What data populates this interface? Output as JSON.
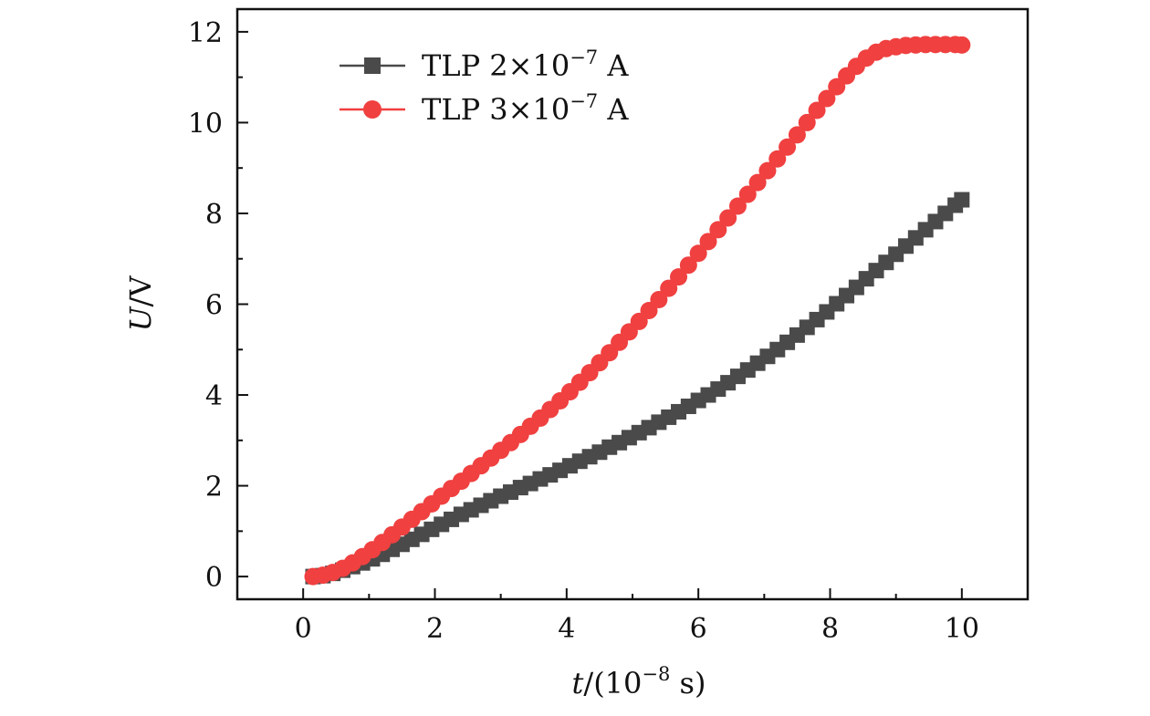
{
  "chart_data": {
    "type": "line",
    "title": "",
    "xlabel": "t/(10⁻⁸ s)",
    "xlabel_var": "t",
    "xlabel_rest": "/(10",
    "xlabel_exp": "−8",
    "xlabel_unit": " s)",
    "ylabel": "U/V",
    "ylabel_var": "U",
    "ylabel_rest": "/V",
    "xlim": [
      -1,
      11
    ],
    "ylim": [
      -0.5,
      12.5
    ],
    "xticks": [
      0,
      2,
      4,
      6,
      8,
      10
    ],
    "yticks": [
      0,
      2,
      4,
      6,
      8,
      10,
      12
    ],
    "xtick_labels": [
      "0",
      "2",
      "4",
      "6",
      "8",
      "10"
    ],
    "ytick_labels": [
      "0",
      "2",
      "4",
      "6",
      "8",
      "10",
      "12"
    ],
    "grid": false,
    "legend_position": "top-left",
    "series": [
      {
        "name": "TLP 2×10⁻⁷ A",
        "legend_main": "TLP 2×10",
        "legend_exp": "−7",
        "legend_unit": " A",
        "marker": "square",
        "color": "#4a4a4a",
        "x": [
          0.15,
          0.3,
          0.45,
          0.6,
          0.75,
          0.9,
          1.05,
          1.2,
          1.35,
          1.5,
          1.65,
          1.8,
          1.95,
          2.1,
          2.25,
          2.4,
          2.55,
          2.7,
          2.85,
          3.0,
          3.15,
          3.3,
          3.45,
          3.6,
          3.75,
          3.9,
          4.05,
          4.2,
          4.35,
          4.5,
          4.65,
          4.8,
          4.95,
          5.1,
          5.25,
          5.4,
          5.55,
          5.7,
          5.85,
          6.0,
          6.15,
          6.3,
          6.45,
          6.6,
          6.75,
          6.9,
          7.05,
          7.2,
          7.35,
          7.5,
          7.65,
          7.8,
          7.95,
          8.1,
          8.25,
          8.4,
          8.55,
          8.7,
          8.85,
          9.0,
          9.15,
          9.3,
          9.45,
          9.6,
          9.75,
          9.9,
          10.0
        ],
        "y": [
          0.0,
          0.02,
          0.07,
          0.14,
          0.22,
          0.3,
          0.39,
          0.49,
          0.6,
          0.71,
          0.82,
          0.93,
          1.04,
          1.15,
          1.26,
          1.37,
          1.47,
          1.57,
          1.67,
          1.77,
          1.86,
          1.96,
          2.05,
          2.15,
          2.24,
          2.34,
          2.44,
          2.54,
          2.64,
          2.74,
          2.85,
          2.95,
          3.06,
          3.17,
          3.28,
          3.4,
          3.51,
          3.63,
          3.75,
          3.88,
          4.0,
          4.13,
          4.27,
          4.41,
          4.55,
          4.7,
          4.85,
          5.0,
          5.16,
          5.32,
          5.49,
          5.66,
          5.83,
          6.01,
          6.19,
          6.37,
          6.56,
          6.74,
          6.92,
          7.1,
          7.28,
          7.46,
          7.64,
          7.82,
          8.0,
          8.18,
          8.3
        ]
      },
      {
        "name": "TLP 3×10⁻⁷ A",
        "legend_main": "TLP 3×10",
        "legend_exp": "−7",
        "legend_unit": " A",
        "marker": "circle",
        "color": "#f04040",
        "x": [
          0.15,
          0.3,
          0.45,
          0.6,
          0.75,
          0.9,
          1.05,
          1.2,
          1.35,
          1.5,
          1.65,
          1.8,
          1.95,
          2.1,
          2.25,
          2.4,
          2.55,
          2.7,
          2.85,
          3.0,
          3.15,
          3.3,
          3.45,
          3.6,
          3.75,
          3.9,
          4.05,
          4.2,
          4.35,
          4.5,
          4.65,
          4.8,
          4.95,
          5.1,
          5.25,
          5.4,
          5.55,
          5.7,
          5.85,
          6.0,
          6.15,
          6.3,
          6.45,
          6.6,
          6.75,
          6.9,
          7.05,
          7.2,
          7.35,
          7.5,
          7.65,
          7.8,
          7.95,
          8.1,
          8.25,
          8.4,
          8.55,
          8.7,
          8.85,
          9.0,
          9.15,
          9.3,
          9.45,
          9.6,
          9.75,
          9.9,
          10.0
        ],
        "y": [
          0.0,
          0.03,
          0.09,
          0.18,
          0.3,
          0.44,
          0.59,
          0.75,
          0.92,
          1.09,
          1.26,
          1.43,
          1.6,
          1.77,
          1.94,
          2.1,
          2.27,
          2.44,
          2.61,
          2.78,
          2.95,
          3.13,
          3.31,
          3.49,
          3.68,
          3.87,
          4.07,
          4.28,
          4.49,
          4.71,
          4.93,
          5.16,
          5.39,
          5.62,
          5.86,
          6.1,
          6.35,
          6.6,
          6.86,
          7.12,
          7.38,
          7.64,
          7.9,
          8.16,
          8.42,
          8.68,
          8.94,
          9.2,
          9.46,
          9.73,
          10.0,
          10.27,
          10.53,
          10.79,
          11.03,
          11.24,
          11.42,
          11.55,
          11.63,
          11.67,
          11.7,
          11.71,
          11.72,
          11.72,
          11.72,
          11.72,
          11.71
        ]
      }
    ]
  }
}
